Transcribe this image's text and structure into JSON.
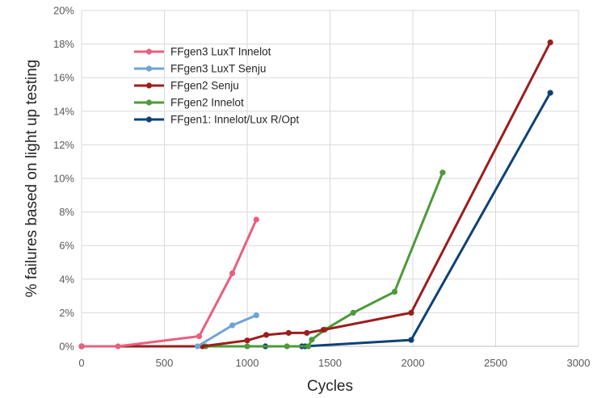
{
  "chart_data": {
    "type": "line",
    "title": "",
    "xlabel": "Cycles",
    "ylabel": "% failures based on light up testing",
    "xlim": [
      0,
      3000
    ],
    "ylim": [
      0,
      20
    ],
    "x_ticks": [
      0,
      500,
      1000,
      1500,
      2000,
      2500,
      3000
    ],
    "y_ticks": [
      0,
      2,
      4,
      6,
      8,
      10,
      12,
      14,
      16,
      18,
      20
    ],
    "y_tick_labels": [
      "0%",
      "2%",
      "4%",
      "6%",
      "8%",
      "10%",
      "12%",
      "14%",
      "16%",
      "18%",
      "20%"
    ],
    "grid": "vertical and horizontal",
    "legend_position": "top-left",
    "series": [
      {
        "name": "FFgen3 LuxT Innelot",
        "color": "#e8607e",
        "points": [
          [
            0,
            0
          ],
          [
            220,
            0
          ],
          [
            710,
            0.6
          ],
          [
            910,
            4.35
          ],
          [
            1055,
            7.55
          ]
        ]
      },
      {
        "name": "FFgen3 LuxT Senju",
        "color": "#6fa3d6",
        "points": [
          [
            700,
            0
          ],
          [
            910,
            1.25
          ],
          [
            1055,
            1.85
          ]
        ]
      },
      {
        "name": "FFgen2 Senju",
        "color": "#9c1d1d",
        "points": [
          [
            0,
            0
          ],
          [
            730,
            0
          ],
          [
            1000,
            0.35
          ],
          [
            1115,
            0.68
          ],
          [
            1250,
            0.8
          ],
          [
            1360,
            0.8
          ],
          [
            1460,
            0.98
          ],
          [
            1990,
            2.0
          ],
          [
            2830,
            18.1
          ]
        ]
      },
      {
        "name": "FFgen2 Innelot",
        "color": "#4c9a3a",
        "points": [
          [
            0,
            0
          ],
          [
            750,
            0
          ],
          [
            1000,
            0
          ],
          [
            1240,
            0
          ],
          [
            1370,
            0
          ],
          [
            1390,
            0.4
          ],
          [
            1470,
            1.0
          ],
          [
            1640,
            2.0
          ],
          [
            1890,
            3.25
          ],
          [
            2180,
            10.35
          ]
        ]
      },
      {
        "name": "FFgen1: Innelot/Lux R/Opt",
        "color": "#0f4176",
        "points": [
          [
            0,
            0
          ],
          [
            1110,
            0
          ],
          [
            1330,
            0
          ],
          [
            1350,
            0
          ],
          [
            1990,
            0.38
          ],
          [
            2830,
            15.1
          ]
        ]
      }
    ]
  }
}
